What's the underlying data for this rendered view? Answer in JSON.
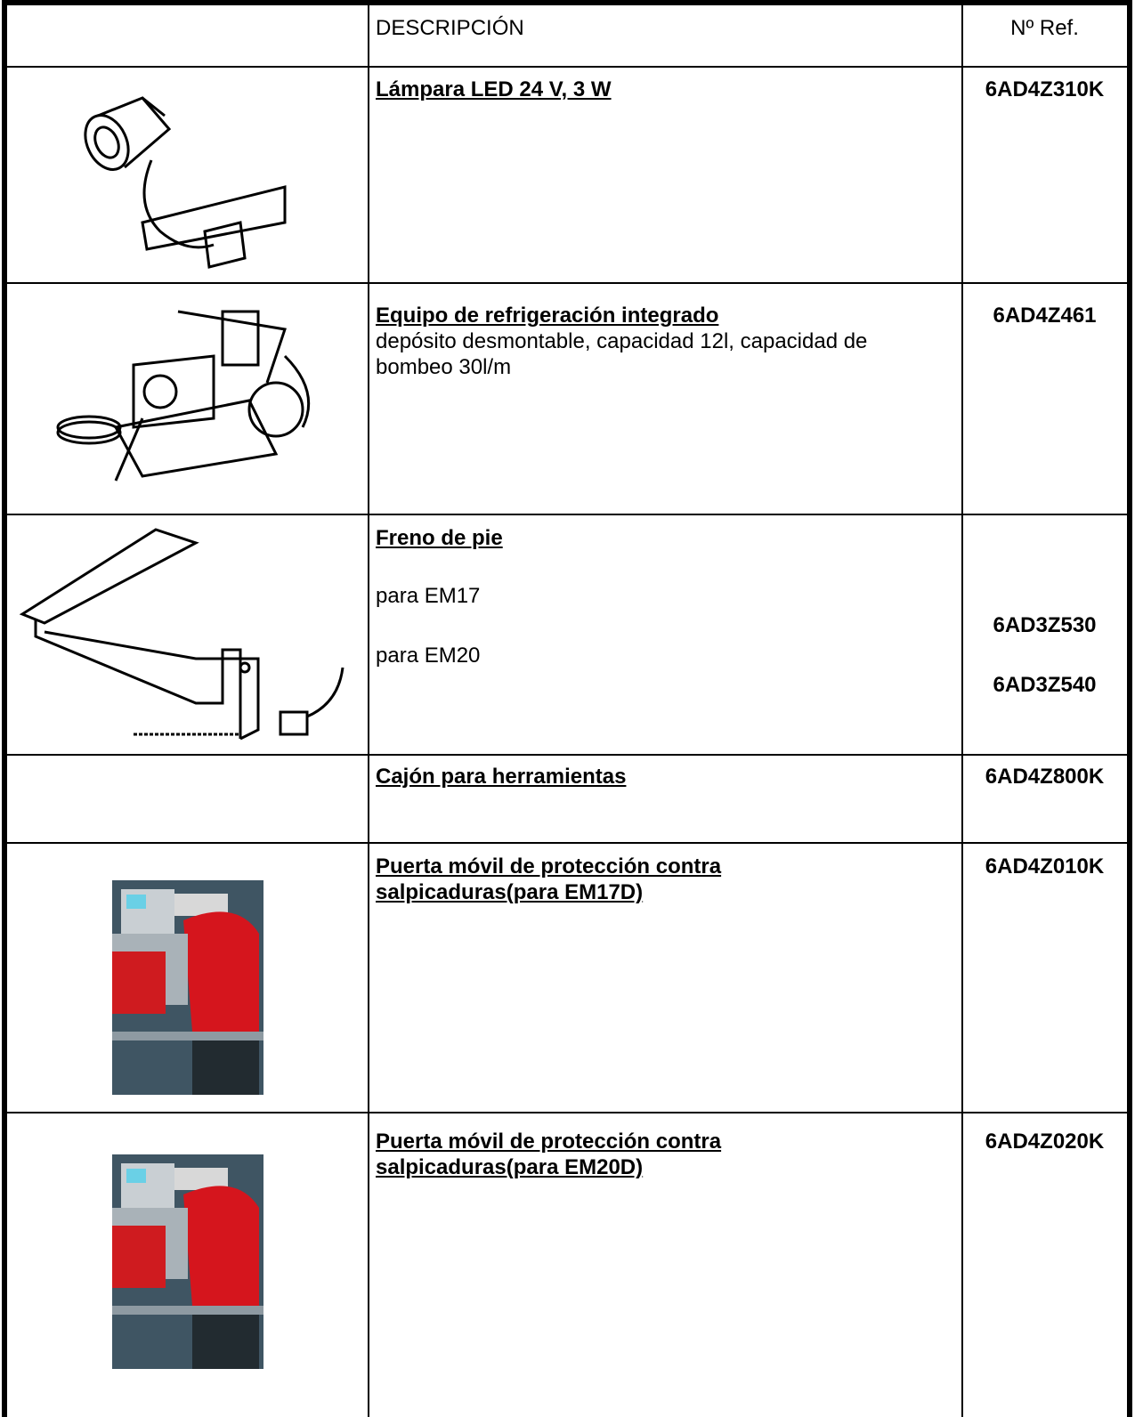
{
  "table": {
    "header": [
      "DESCRIPCIÓN",
      "Nº Ref."
    ],
    "rows": [
      {
        "title": "Lámpara LED 24 V, 3 W",
        "ref": "6AD4Z310K"
      },
      {
        "title": "Equipo de refrigeración integrado",
        "text": "depósito desmontable, capacidad 12l, capacidad de bombeo 30l/m",
        "ref": "6AD4Z461"
      },
      {
        "title": "Freno de pie",
        "variants": [
          {
            "label": "para EM17",
            "ref": "6AD3Z530"
          },
          {
            "label": "para EM20",
            "ref": "6AD3Z540"
          }
        ]
      },
      {
        "title": "Cajón para herramientas",
        "ref": "6AD4Z800K"
      },
      {
        "title": "Puerta móvil de protección contra salpicaduras(para EM17D)",
        "ref": "6AD4Z010K"
      },
      {
        "title": "Puerta móvil de protección contra salpicaduras(para EM20D)",
        "ref": "6AD4Z020K"
      }
    ]
  }
}
